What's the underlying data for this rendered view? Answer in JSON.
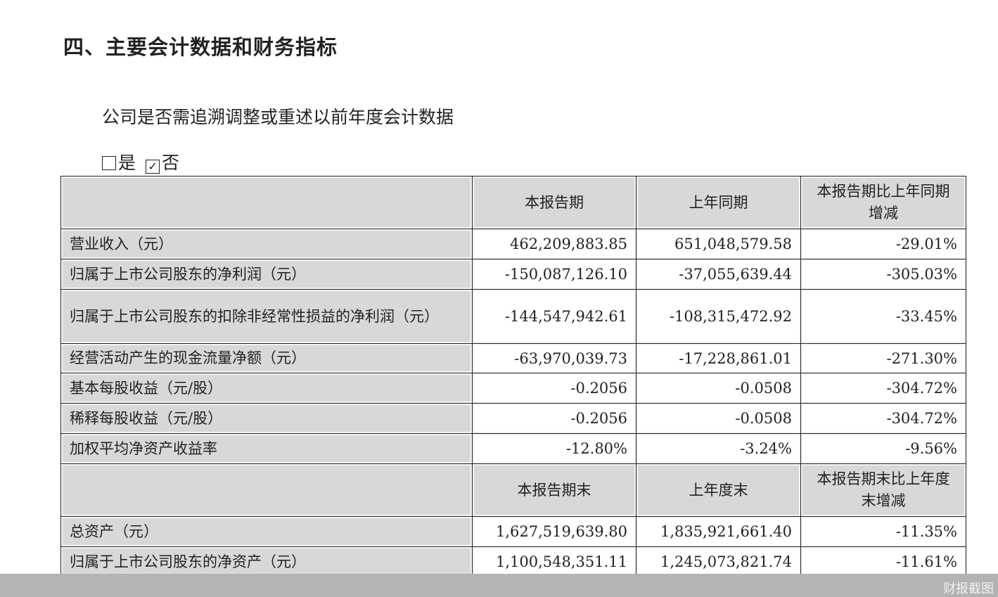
{
  "title": "四、主要会计数据和财务指标",
  "question": "公司是否需追溯调整或重述以前年度会计数据",
  "choices": [
    {
      "label": "是",
      "checked": false
    },
    {
      "label": "否",
      "checked": true
    }
  ],
  "table": {
    "header1": [
      "",
      "本报告期",
      "上年同期",
      "本报告期比上年同期增减"
    ],
    "rows1": [
      [
        "营业收入（元）",
        "462,209,883.85",
        "651,048,579.58",
        "-29.01%"
      ],
      [
        "归属于上市公司股东的净利润（元）",
        "-150,087,126.10",
        "-37,055,639.44",
        "-305.03%"
      ],
      [
        "归属于上市公司股东的扣除非经常性损益的净利润（元）",
        "-144,547,942.61",
        "-108,315,472.92",
        "-33.45%"
      ],
      [
        "经营活动产生的现金流量净额（元）",
        "-63,970,039.73",
        "-17,228,861.01",
        "-271.30%"
      ],
      [
        "基本每股收益（元/股）",
        "-0.2056",
        "-0.0508",
        "-304.72%"
      ],
      [
        "稀释每股收益（元/股）",
        "-0.2056",
        "-0.0508",
        "-304.72%"
      ],
      [
        "加权平均净资产收益率",
        "-12.80%",
        "-3.24%",
        "-9.56%"
      ]
    ],
    "header2": [
      "",
      "本报告期末",
      "上年度末",
      "本报告期末比上年度末增减"
    ],
    "rows2": [
      [
        "总资产（元）",
        "1,627,519,639.80",
        "1,835,921,661.40",
        "-11.35%"
      ],
      [
        "归属于上市公司股东的净资产（元）",
        "1,100,548,351.11",
        "1,245,073,821.74",
        "-11.61%"
      ]
    ]
  },
  "watermark": "财报截图"
}
